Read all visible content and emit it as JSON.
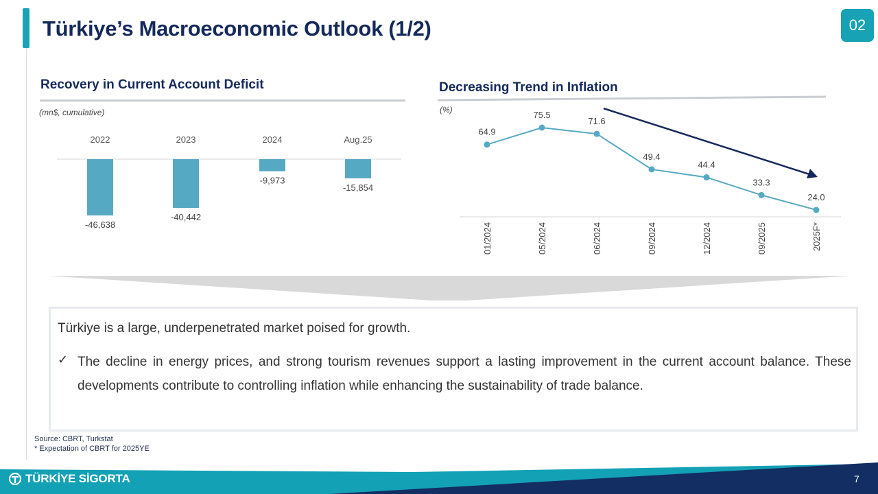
{
  "header": {
    "title": "Türkiye’s Macroeconomic Outlook (1/2)",
    "badge": "02"
  },
  "left_chart": {
    "title": "Recovery in Current Account Deficit",
    "unit": "(mn$, cumulative)"
  },
  "right_chart": {
    "title": "Decreasing Trend in Inflation",
    "unit": "(%)"
  },
  "chart_data": [
    {
      "type": "bar",
      "title": "Recovery in Current Account Deficit",
      "ylabel": "(mn$, cumulative)",
      "categories": [
        "2022",
        "2023",
        "2024",
        "Aug.25"
      ],
      "values": [
        -46638,
        -40442,
        -9973,
        -15854
      ],
      "value_labels": [
        "-46,638",
        "-40,442",
        "-9,973",
        "-15,854"
      ],
      "ylim": [
        -50000,
        0
      ],
      "color": "#56a9c2",
      "grid": false
    },
    {
      "type": "line",
      "title": "Decreasing Trend in Inflation",
      "ylabel": "(%)",
      "categories": [
        "01/2024",
        "05/2024",
        "06/2024",
        "09/2024",
        "12/2024",
        "09/2025",
        "2025F*"
      ],
      "values": [
        64.9,
        75.5,
        71.6,
        49.4,
        44.4,
        33.3,
        24.0
      ],
      "value_labels": [
        "64.9",
        "75.5",
        "71.6",
        "49.4",
        "44.4",
        "33.3",
        "24.0"
      ],
      "ylim": [
        15,
        80
      ],
      "color": "#56a9c2",
      "trend_color": "#15295b",
      "grid": false
    }
  ],
  "summary": {
    "intro": "Türkiye is a large, underpenetrated market poised for growth.",
    "check": "✓",
    "bullet": "The decline in energy prices, and strong tourism revenues support a lasting improvement in the current account balance. These developments contribute to controlling inflation while enhancing the sustainability of  trade balance."
  },
  "source": {
    "line1": "Source: CBRT, Turkstat",
    "line2": "* Expectation of CBRT for 2025YE"
  },
  "footer": {
    "logo_text": "TÜRKİYE SİGORTA",
    "page_number": "7"
  },
  "colors": {
    "accent": "#1aa3b8",
    "navy": "#15295b",
    "bar": "#56a9c2"
  }
}
